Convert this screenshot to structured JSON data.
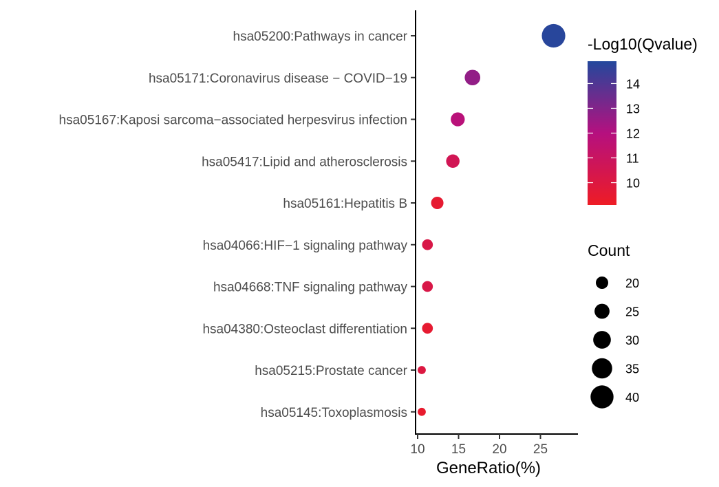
{
  "chart_data": {
    "type": "scatter",
    "title": "",
    "xlabel": "GeneRatio(%)",
    "ylabel": "",
    "xlim": [
      9.8,
      29.5
    ],
    "xticks": [
      10,
      15,
      20,
      25
    ],
    "grid": false,
    "categories": [
      "hsa05200:Pathways in cancer",
      "hsa05171:Coronavirus disease − COVID−19",
      "hsa05167:Kaposi sarcoma−associated herpesvirus infection",
      "hsa05417:Lipid and atherosclerosis",
      "hsa05161:Hepatitis B",
      "hsa04066:HIF−1 signaling pathway",
      "hsa04668:TNF signaling pathway",
      "hsa04380:Osteoclast differentiation",
      "hsa05215:Prostate cancer",
      "hsa05145:Toxoplasmosis"
    ],
    "gene_ratio": [
      26.6,
      16.7,
      14.9,
      14.3,
      12.4,
      11.2,
      11.2,
      11.2,
      10.5,
      10.5
    ],
    "count": [
      41,
      26,
      23,
      22,
      20,
      17,
      17,
      17,
      12,
      12
    ],
    "neg_log10_qvalue": [
      14.8,
      12.7,
      11.8,
      10.6,
      9.5,
      10.2,
      10.2,
      9.5,
      10.0,
      9.4
    ],
    "color_legend": {
      "title": "-Log10(Qvalue)",
      "ticks": [
        14,
        13,
        12,
        11,
        10
      ],
      "range": [
        9.1,
        14.9
      ],
      "low_color": "#ee1c25",
      "mid_color": "#b5107f",
      "high_color": "#23489c"
    },
    "size_legend": {
      "title": "Count",
      "values": [
        20,
        25,
        30,
        35,
        40
      ],
      "labels": [
        "20",
        "25",
        "30",
        "35",
        "40"
      ]
    },
    "legend_position": "right"
  }
}
